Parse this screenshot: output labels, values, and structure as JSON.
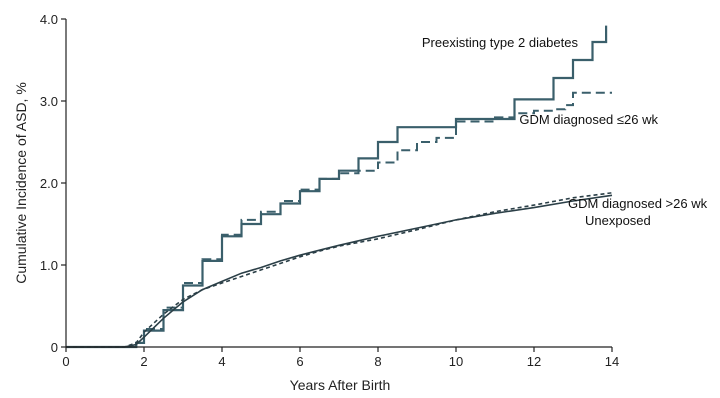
{
  "chart_data": {
    "type": "line",
    "xlabel": "Years After Birth",
    "ylabel": "Cumulative Incidence of ASD, %",
    "xlim": [
      0,
      14
    ],
    "ylim": [
      0,
      4
    ],
    "x_ticks": [
      "0",
      "2",
      "4",
      "6",
      "8",
      "10",
      "12",
      "14"
    ],
    "y_ticks": [
      "0",
      "1.0",
      "2.0",
      "3.0",
      "4.0"
    ],
    "grid": false,
    "legend": "direct labels",
    "colors": {
      "dark_series": "#3a5f6b",
      "light_series": "#2b3f47"
    },
    "series": [
      {
        "name": "Preexisting type 2 diabetes",
        "style": "solid",
        "x": [
          0,
          1.5,
          1.8,
          2.0,
          2.5,
          3.0,
          3.5,
          4.0,
          4.5,
          5.0,
          5.5,
          6.0,
          6.5,
          7.0,
          7.5,
          8.0,
          8.5,
          9.0,
          9.5,
          10.0,
          11.0,
          11.5,
          12.0,
          12.5,
          13.0,
          13.5,
          13.8,
          13.85
        ],
        "y": [
          0,
          0,
          0.05,
          0.2,
          0.45,
          0.75,
          1.05,
          1.35,
          1.5,
          1.62,
          1.75,
          1.9,
          2.05,
          2.15,
          2.3,
          2.5,
          2.68,
          2.68,
          2.68,
          2.78,
          2.78,
          3.02,
          3.02,
          3.28,
          3.5,
          3.72,
          3.72,
          3.92
        ]
      },
      {
        "name": "GDM diagnosed ≤26 wk",
        "style": "dashed",
        "x": [
          0,
          1.5,
          1.8,
          2.0,
          2.5,
          3.0,
          3.5,
          4.0,
          4.5,
          5.0,
          5.5,
          6.0,
          6.5,
          7.0,
          7.5,
          8.0,
          8.5,
          9.0,
          9.5,
          10.0,
          11.0,
          11.5,
          12.0,
          12.5,
          12.8,
          13.0,
          14.0
        ],
        "y": [
          0,
          0,
          0.05,
          0.22,
          0.48,
          0.78,
          1.07,
          1.37,
          1.55,
          1.65,
          1.78,
          1.92,
          2.05,
          2.12,
          2.15,
          2.25,
          2.4,
          2.5,
          2.55,
          2.75,
          2.8,
          2.85,
          2.88,
          2.9,
          2.95,
          3.1,
          3.1
        ]
      },
      {
        "name": "GDM diagnosed >26 wk",
        "style": "dashed",
        "x": [
          0,
          1.5,
          1.8,
          2.0,
          2.5,
          3.0,
          3.5,
          4.0,
          4.5,
          5.0,
          5.5,
          6.0,
          6.5,
          7.0,
          8.0,
          9.0,
          10.0,
          11.0,
          12.0,
          13.0,
          14.0
        ],
        "y": [
          0,
          0,
          0.05,
          0.18,
          0.4,
          0.58,
          0.7,
          0.78,
          0.86,
          0.94,
          1.02,
          1.1,
          1.17,
          1.23,
          1.32,
          1.43,
          1.55,
          1.65,
          1.73,
          1.82,
          1.88
        ]
      },
      {
        "name": "Unexposed",
        "style": "solid",
        "x": [
          0,
          1.5,
          1.8,
          2.0,
          2.5,
          3.0,
          3.5,
          4.0,
          4.5,
          5.0,
          5.5,
          6.0,
          6.5,
          7.0,
          8.0,
          9.0,
          10.0,
          11.0,
          12.0,
          13.0,
          14.0
        ],
        "y": [
          0,
          0,
          0.03,
          0.12,
          0.35,
          0.55,
          0.7,
          0.8,
          0.9,
          0.97,
          1.05,
          1.12,
          1.18,
          1.24,
          1.35,
          1.45,
          1.55,
          1.63,
          1.7,
          1.78,
          1.85
        ]
      }
    ]
  }
}
